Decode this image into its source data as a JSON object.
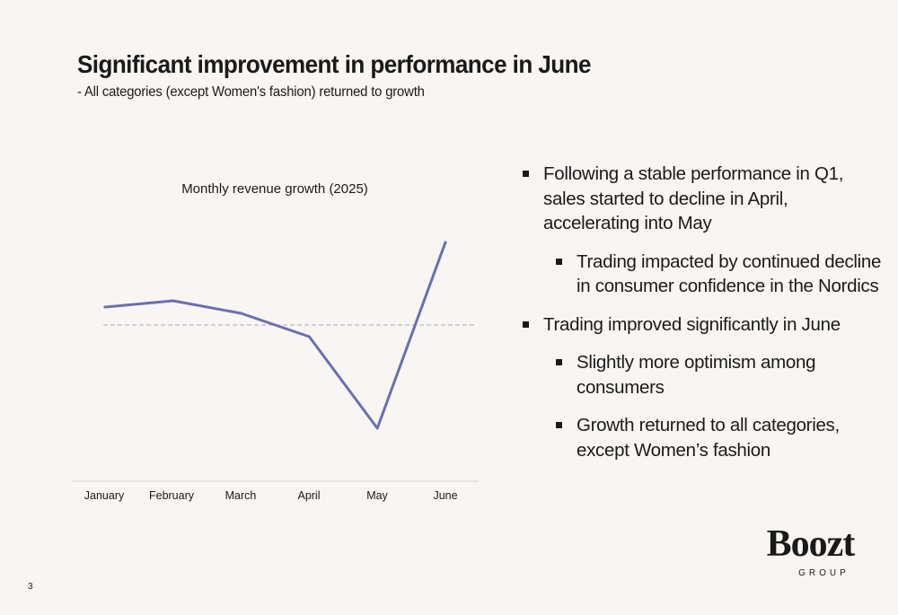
{
  "slide": {
    "title": "Significant improvement in performance in June",
    "subtitle": "- All categories (except Women's fashion) returned to growth",
    "page_number": "3"
  },
  "bullets": [
    {
      "level": 1,
      "text": "Following a stable performance in Q1, sales started to decline in April, accelerating into May"
    },
    {
      "level": 2,
      "text": "Trading impacted by continued decline in consumer confidence in the Nordics"
    },
    {
      "level": 1,
      "text": "Trading improved significantly in June"
    },
    {
      "level": 2,
      "text": "Slightly more optimism among consumers"
    },
    {
      "level": 2,
      "text": "Growth returned to all categories, except Women’s fashion"
    }
  ],
  "logo": {
    "word": "Boozt",
    "sub": "GROUP"
  },
  "chart_data": {
    "type": "line",
    "title": "Monthly revenue growth (2025)",
    "categories": [
      "January",
      "February",
      "March",
      "April",
      "May",
      "June"
    ],
    "series": [
      {
        "values": [
          0.2,
          0.27,
          0.13,
          -0.13,
          -1.15,
          0.92
        ],
        "color": "#6b70b0"
      }
    ],
    "reference_line": {
      "y": 0,
      "style": "dashed",
      "color": "#a9abcc"
    },
    "ylim": [
      -1.6,
      1.3
    ],
    "y_axis_labels": false,
    "grid": false,
    "legend": "none"
  }
}
